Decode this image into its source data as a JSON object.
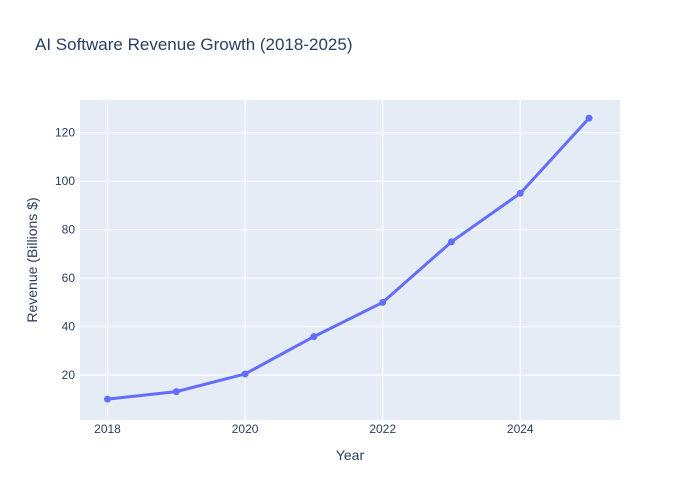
{
  "chart_data": {
    "type": "line",
    "title": "AI Software Revenue Growth (2018-2025)",
    "xlabel": "Year",
    "ylabel": "Revenue (Billions $)",
    "x": [
      2018,
      2019,
      2020,
      2021,
      2022,
      2023,
      2024,
      2025
    ],
    "series": [
      {
        "values": [
          10.1,
          13.2,
          20.5,
          35.9,
          50.0,
          75.0,
          95.0,
          126.0
        ]
      }
    ],
    "xlim": [
      2017.6,
      2025.45
    ],
    "ylim": [
      1.5,
      133.5
    ],
    "xticks": [
      2018,
      2020,
      2022,
      2024
    ],
    "xtick_labels": [
      "2018",
      "2020",
      "2022",
      "2024"
    ],
    "yticks": [
      20,
      40,
      60,
      80,
      100,
      120
    ],
    "ytick_labels": [
      "20",
      "40",
      "60",
      "80",
      "100",
      "120"
    ],
    "grid": true,
    "legend": "none",
    "line_color": "#636efa",
    "plot_bgcolor": "#e5ecf6",
    "grid_color": "#ffffff"
  }
}
